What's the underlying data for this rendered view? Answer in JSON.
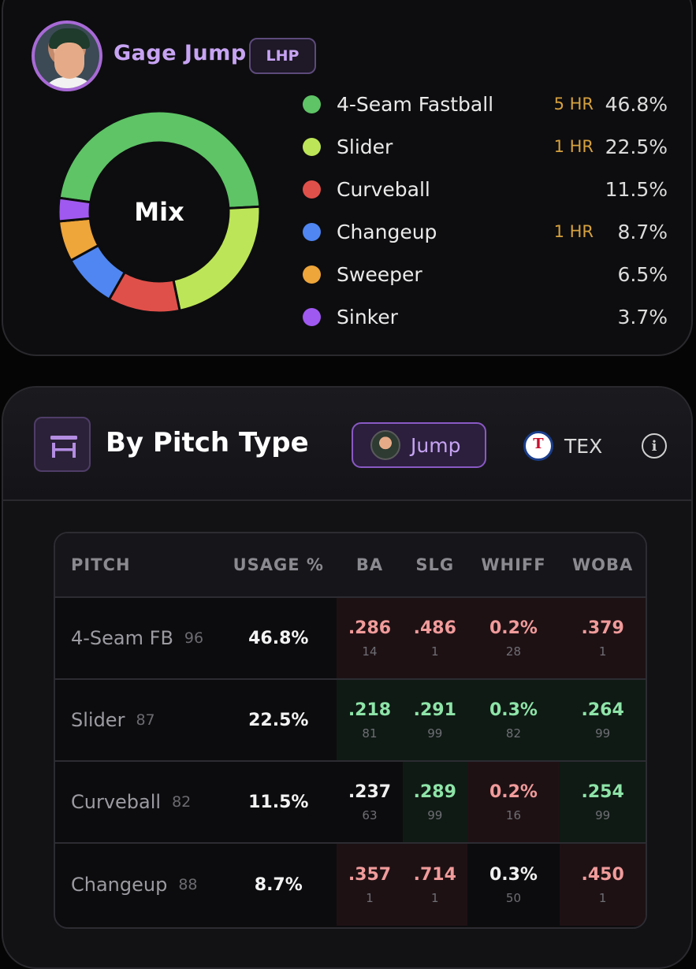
{
  "player": {
    "name": "Gage Jump",
    "hand": "LHP"
  },
  "mix": {
    "center_label": "Mix",
    "pitches": [
      {
        "name": "4-Seam Fastball",
        "hr": "5 HR",
        "pct": "46.8%",
        "value": 46.8,
        "color": "#5ec466"
      },
      {
        "name": "Slider",
        "hr": "1 HR",
        "pct": "22.5%",
        "value": 22.5,
        "color": "#bde558"
      },
      {
        "name": "Curveball",
        "hr": "",
        "pct": "11.5%",
        "value": 11.5,
        "color": "#e0504a"
      },
      {
        "name": "Changeup",
        "hr": "1 HR",
        "pct": "8.7%",
        "value": 8.7,
        "color": "#4f86f2"
      },
      {
        "name": "Sweeper",
        "hr": "",
        "pct": "6.5%",
        "value": 6.5,
        "color": "#eea53a"
      },
      {
        "name": "Sinker",
        "hr": "",
        "pct": "3.7%",
        "value": 3.7,
        "color": "#a059f0"
      }
    ]
  },
  "section": {
    "title": "By Pitch Type",
    "icon": "stool-icon",
    "toggle_player": "Jump",
    "toggle_team": "TEX",
    "info_icon": "info-icon"
  },
  "table": {
    "headers": [
      "PITCH",
      "USAGE %",
      "BA",
      "SLG",
      "WHIFF",
      "WOBA"
    ],
    "rows": [
      {
        "pitch": "4-Seam FB",
        "velo": "96",
        "usage": "46.8%",
        "ba": ".286",
        "ba_rank": "14",
        "slg": ".486",
        "slg_rank": "1",
        "whiff": "0.2%",
        "whiff_rank": "28",
        "woba": ".379",
        "woba_rank": "1",
        "tones": [
          "bad",
          "bad",
          "bad",
          "bad"
        ]
      },
      {
        "pitch": "Slider",
        "velo": "87",
        "usage": "22.5%",
        "ba": ".218",
        "ba_rank": "81",
        "slg": ".291",
        "slg_rank": "99",
        "whiff": "0.3%",
        "whiff_rank": "82",
        "woba": ".264",
        "woba_rank": "99",
        "tones": [
          "good",
          "good",
          "good",
          "good"
        ]
      },
      {
        "pitch": "Curveball",
        "velo": "82",
        "usage": "11.5%",
        "ba": ".237",
        "ba_rank": "63",
        "slg": ".289",
        "slg_rank": "99",
        "whiff": "0.2%",
        "whiff_rank": "16",
        "woba": ".254",
        "woba_rank": "99",
        "tones": [
          "neutral",
          "good",
          "bad",
          "good"
        ]
      },
      {
        "pitch": "Changeup",
        "velo": "88",
        "usage": "8.7%",
        "ba": ".357",
        "ba_rank": "1",
        "slg": ".714",
        "slg_rank": "1",
        "whiff": "0.3%",
        "whiff_rank": "50",
        "woba": ".450",
        "woba_rank": "1",
        "tones": [
          "bad",
          "bad",
          "neutral",
          "bad"
        ]
      }
    ]
  }
}
